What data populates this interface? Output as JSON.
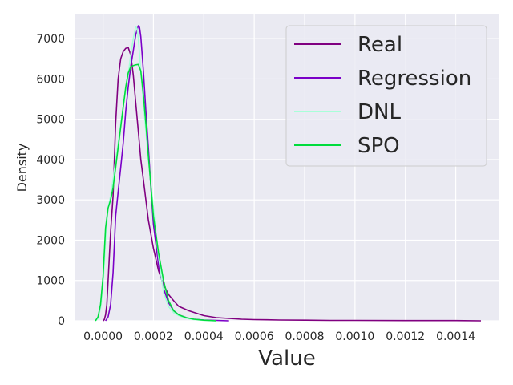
{
  "chart_data": {
    "type": "line",
    "title": "",
    "xlabel": "Value",
    "ylabel": "Density",
    "xlim": [
      -0.00011,
      0.00157
    ],
    "ylim": [
      0,
      7600
    ],
    "xticks": [
      0.0,
      0.0002,
      0.0004,
      0.0006,
      0.0008,
      0.001,
      0.0012,
      0.0014
    ],
    "xtick_labels": [
      "0.0000",
      "0.0002",
      "0.0004",
      "0.0006",
      "0.0008",
      "0.0010",
      "0.0012",
      "0.0014"
    ],
    "yticks": [
      0,
      1000,
      2000,
      3000,
      4000,
      5000,
      6000,
      7000
    ],
    "ytick_labels": [
      "0",
      "1000",
      "2000",
      "3000",
      "4000",
      "5000",
      "6000",
      "7000"
    ],
    "grid": true,
    "legend_position": "top-right",
    "series": [
      {
        "name": "Real",
        "color": "#800080",
        "x": [
          0.0,
          5e-06,
          1e-05,
          1.5e-05,
          2e-05,
          3e-05,
          4e-05,
          5e-05,
          6e-05,
          7e-05,
          8e-05,
          9e-05,
          0.0001,
          0.00011,
          0.00012,
          0.00013,
          0.00014,
          0.00015,
          0.00016,
          0.00017,
          0.00018,
          0.0002,
          0.00022,
          0.00024,
          0.00026,
          0.00028,
          0.0003,
          0.00034,
          0.0004,
          0.00045,
          0.0005,
          0.00055,
          0.0006,
          0.00065,
          0.0007,
          0.0008,
          0.0009,
          0.001,
          0.0012,
          0.0014,
          0.0015
        ],
        "y": [
          0,
          30,
          150,
          400,
          1000,
          2200,
          3100,
          4900,
          6000,
          6500,
          6680,
          6760,
          6780,
          6600,
          6100,
          5400,
          4700,
          4000,
          3500,
          3000,
          2500,
          1800,
          1250,
          900,
          650,
          500,
          360,
          250,
          130,
          80,
          60,
          40,
          30,
          25,
          20,
          15,
          10,
          10,
          5,
          5,
          0
        ]
      },
      {
        "name": "Regression",
        "color": "#7b00c8",
        "x": [
          1e-05,
          2e-05,
          3e-05,
          4e-05,
          5e-05,
          6e-05,
          7e-05,
          8e-05,
          9e-05,
          0.0001,
          0.00011,
          0.00012,
          0.00013,
          0.00014,
          0.000145,
          0.00015,
          0.00016,
          0.00017,
          0.00018,
          0.00019,
          0.0002,
          0.00022,
          0.00024,
          0.00026,
          0.00028,
          0.0003,
          0.00033,
          0.00036,
          0.0004,
          0.00045,
          0.0005
        ],
        "y": [
          0,
          100,
          400,
          1200,
          2600,
          3200,
          3800,
          4400,
          5200,
          5800,
          6300,
          6700,
          7100,
          7320,
          7280,
          7050,
          6200,
          5200,
          4300,
          3300,
          2400,
          1400,
          800,
          450,
          250,
          150,
          80,
          40,
          20,
          10,
          0
        ]
      },
      {
        "name": "DNL",
        "color": "#a8ffd8",
        "x": [
          -3e-05,
          -2e-05,
          -1e-05,
          0.0,
          1e-05,
          2e-05,
          3e-05,
          4e-05,
          5e-05,
          6e-05,
          7e-05,
          8e-05,
          9e-05,
          0.0001,
          0.00011,
          0.00012,
          0.00013,
          0.000135,
          0.00014,
          0.00015,
          0.00016,
          0.00017,
          0.00018,
          0.0002,
          0.00022,
          0.00024,
          0.00026,
          0.00028,
          0.0003,
          0.00033,
          0.00036,
          0.0004,
          0.00045
        ],
        "y": [
          0,
          60,
          300,
          900,
          2000,
          2800,
          3100,
          3500,
          4000,
          4400,
          4900,
          5300,
          5700,
          6100,
          6600,
          7000,
          7300,
          7250,
          7000,
          6200,
          5400,
          4700,
          4000,
          2800,
          1600,
          700,
          350,
          200,
          130,
          60,
          30,
          10,
          0
        ]
      },
      {
        "name": "SPO",
        "color": "#00dc3c",
        "x": [
          -3e-05,
          -2e-05,
          -1e-05,
          0.0,
          1e-05,
          2e-05,
          3e-05,
          4e-05,
          5e-05,
          6e-05,
          7e-05,
          8e-05,
          9e-05,
          0.0001,
          0.00011,
          0.00012,
          0.00013,
          0.00014,
          0.00015,
          0.00016,
          0.00017,
          0.00018,
          0.0002,
          0.00022,
          0.00024,
          0.00026,
          0.00028,
          0.0003,
          0.00033,
          0.00036,
          0.0004,
          0.00045
        ],
        "y": [
          0,
          100,
          400,
          1100,
          2300,
          2800,
          3000,
          3300,
          3800,
          4300,
          4800,
          5300,
          5800,
          6150,
          6300,
          6330,
          6350,
          6360,
          6200,
          5600,
          4900,
          4100,
          2600,
          1700,
          1000,
          500,
          250,
          150,
          80,
          40,
          15,
          0
        ]
      }
    ]
  }
}
